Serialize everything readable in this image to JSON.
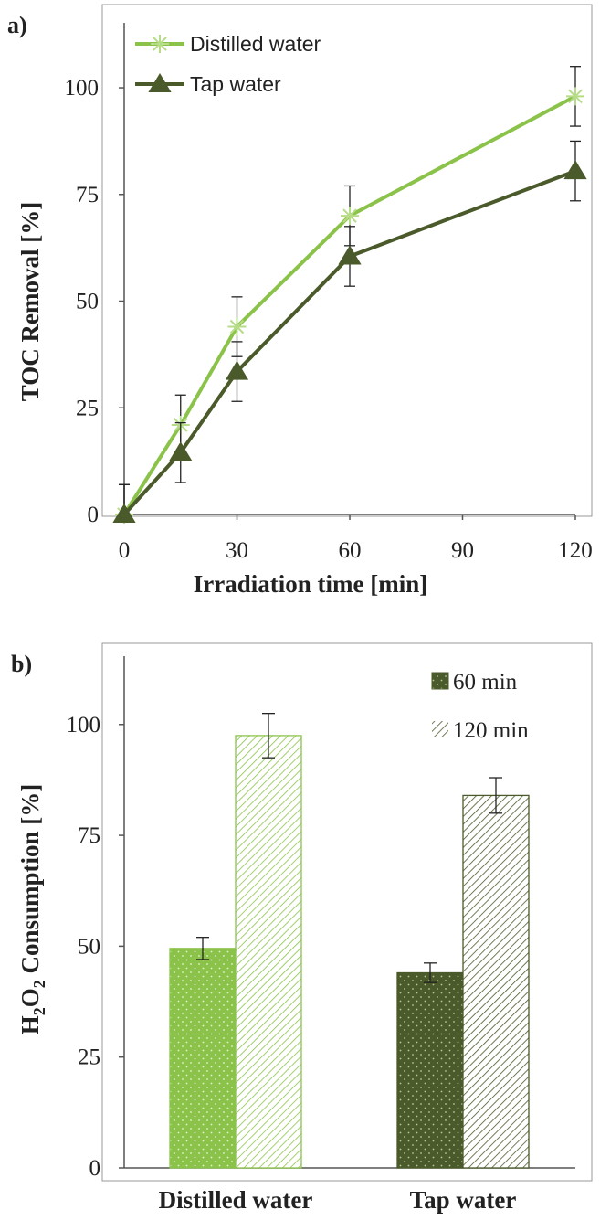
{
  "panel_a": {
    "label": "a)",
    "chart_data": {
      "type": "line",
      "xlabel": "Irradiation  time [min]",
      "ylabel": "TOC Removal [%]",
      "xlim": [
        0,
        120
      ],
      "ylim": [
        0,
        115
      ],
      "xticks": [
        0,
        30,
        60,
        90,
        120
      ],
      "yticks": [
        0,
        25,
        50,
        75,
        100
      ],
      "legend_position": "top-left",
      "grid": false,
      "series": [
        {
          "name": "Distilled water",
          "color": "#8bc34a",
          "marker": "asterisk",
          "x": [
            0,
            15,
            30,
            60,
            120
          ],
          "y": [
            0,
            21,
            44,
            70,
            98
          ],
          "error": [
            7,
            7,
            7,
            7,
            7
          ]
        },
        {
          "name": "Tap water",
          "color": "#4a5a2a",
          "marker": "triangle",
          "x": [
            0,
            15,
            30,
            60,
            120
          ],
          "y": [
            0,
            14.5,
            33.5,
            60.5,
            80.5
          ],
          "error": [
            7,
            7,
            7,
            7,
            7
          ]
        }
      ]
    }
  },
  "panel_b": {
    "label": "b)",
    "chart_data": {
      "type": "bar",
      "xlabel": "",
      "ylabel": "H2O2 Consumption [%]",
      "ylabel_parts": {
        "a": "H",
        "b": "2",
        "c": "O",
        "d": "2",
        "e": " Consumption [%]"
      },
      "ylim": [
        0,
        115
      ],
      "yticks": [
        0,
        25,
        50,
        75,
        100
      ],
      "categories": [
        "Distilled water",
        "Tap water"
      ],
      "legend_position": "top-right",
      "grid": false,
      "series": [
        {
          "name": "60 min",
          "values": [
            49.5,
            44
          ],
          "errors": [
            2.5,
            2.2
          ],
          "colors": [
            "#8bc34a",
            "#4a5a2a"
          ],
          "pattern": "dots"
        },
        {
          "name": "120 min",
          "values": [
            97.5,
            84
          ],
          "errors": [
            5,
            4
          ],
          "colors": [
            "#8bc34a",
            "#4a5a2a"
          ],
          "pattern": "hatch"
        }
      ]
    }
  }
}
